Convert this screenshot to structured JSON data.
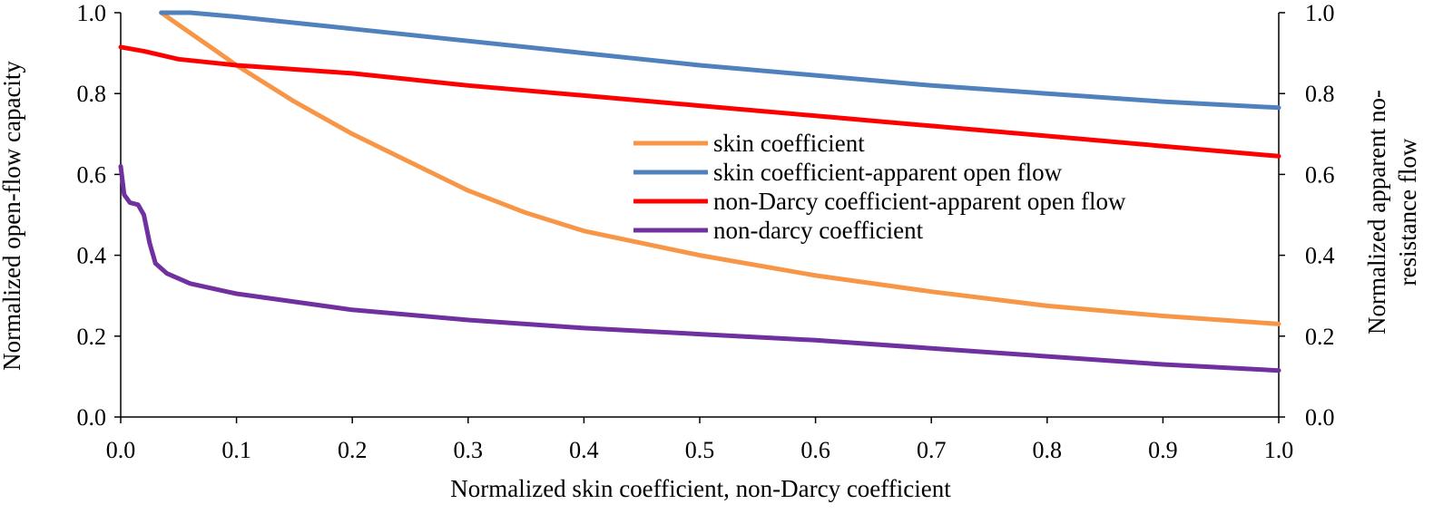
{
  "chart_data": {
    "type": "line",
    "title": "",
    "xlabel": "Normalized skin coefficient, non-Darcy coefficient",
    "ylabel": "Normalized open-flow capacity",
    "y2label_line1": "Normalized apparent no-",
    "y2label_line2": "resistance flow",
    "xlim": [
      0,
      1
    ],
    "ylim": [
      0,
      1
    ],
    "y2lim": [
      0,
      1
    ],
    "xticks": [
      "0.0",
      "0.1",
      "0.2",
      "0.3",
      "0.4",
      "0.5",
      "0.6",
      "0.7",
      "0.8",
      "0.9",
      "1.0"
    ],
    "yticks": [
      "0.0",
      "0.2",
      "0.4",
      "0.6",
      "0.8",
      "1.0"
    ],
    "y2ticks": [
      "0.0",
      "0.2",
      "0.4",
      "0.6",
      "0.8",
      "1.0"
    ],
    "grid": false,
    "legend_position": "center-right",
    "series": [
      {
        "name": "skin coefficient",
        "color": "#F79646",
        "x": [
          0.035,
          0.05,
          0.08,
          0.1,
          0.15,
          0.2,
          0.25,
          0.3,
          0.35,
          0.4,
          0.5,
          0.6,
          0.7,
          0.8,
          0.9,
          1.0
        ],
        "y": [
          1.0,
          0.97,
          0.91,
          0.87,
          0.78,
          0.7,
          0.63,
          0.56,
          0.505,
          0.46,
          0.4,
          0.35,
          0.31,
          0.275,
          0.25,
          0.23
        ]
      },
      {
        "name": "skin coefficient-apparent open flow",
        "color": "#4F81BD",
        "x": [
          0.035,
          0.06,
          0.1,
          0.2,
          0.3,
          0.4,
          0.5,
          0.6,
          0.7,
          0.8,
          0.9,
          1.0
        ],
        "y": [
          1.0,
          1.0,
          0.99,
          0.96,
          0.93,
          0.9,
          0.87,
          0.845,
          0.82,
          0.8,
          0.78,
          0.765
        ]
      },
      {
        "name": "non-Darcy coefficient-apparent open flow",
        "color": "#FF0000",
        "x": [
          0.0,
          0.02,
          0.05,
          0.1,
          0.2,
          0.3,
          0.4,
          0.5,
          0.6,
          0.7,
          0.8,
          0.9,
          1.0
        ],
        "y": [
          0.915,
          0.905,
          0.885,
          0.87,
          0.85,
          0.82,
          0.795,
          0.77,
          0.745,
          0.72,
          0.695,
          0.67,
          0.645
        ]
      },
      {
        "name": "non-darcy coefficient",
        "color": "#7030A0",
        "x": [
          0.0,
          0.003,
          0.008,
          0.015,
          0.02,
          0.025,
          0.03,
          0.04,
          0.06,
          0.1,
          0.15,
          0.2,
          0.3,
          0.4,
          0.5,
          0.6,
          0.7,
          0.8,
          0.9,
          1.0
        ],
        "y": [
          0.62,
          0.55,
          0.53,
          0.525,
          0.5,
          0.43,
          0.38,
          0.355,
          0.33,
          0.305,
          0.285,
          0.265,
          0.24,
          0.22,
          0.205,
          0.19,
          0.17,
          0.15,
          0.13,
          0.115
        ]
      }
    ]
  }
}
